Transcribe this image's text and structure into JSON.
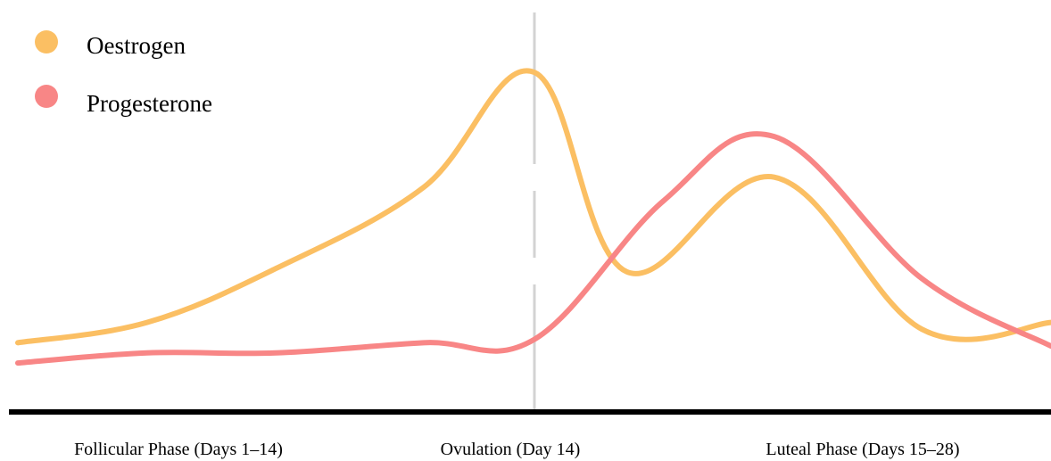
{
  "chart_data": {
    "type": "line",
    "title": "",
    "xlabel": "",
    "ylabel": "",
    "xlim": [
      0,
      28
    ],
    "ylim": [
      0,
      100
    ],
    "grid": false,
    "legend_position": "top-left",
    "phases": [
      {
        "label": "Follicular Phase (Days 1–14)",
        "x": 7
      },
      {
        "label": "Ovulation (Day 14)",
        "x": 14
      },
      {
        "label": "Luteal Phase (Days 15–28)",
        "x": 21
      }
    ],
    "ovulation_day": 14,
    "series": [
      {
        "name": "Oestrogen",
        "color": "#FBBF63",
        "x": [
          0,
          3.5,
          7,
          11,
          14,
          16.5,
          20.5,
          24.5,
          28
        ],
        "y": [
          16,
          22,
          38,
          62,
          96,
          37,
          65,
          20,
          22
        ]
      },
      {
        "name": "Progesterone",
        "color": "#F88686",
        "x": [
          0,
          3.5,
          7,
          11,
          14,
          17.5,
          20.5,
          24.5,
          28
        ],
        "y": [
          10,
          13,
          13,
          16,
          17,
          58,
          77,
          35,
          15
        ]
      }
    ],
    "ovulation_line_color": "#D3D3D3",
    "axis_color": "#000000"
  }
}
